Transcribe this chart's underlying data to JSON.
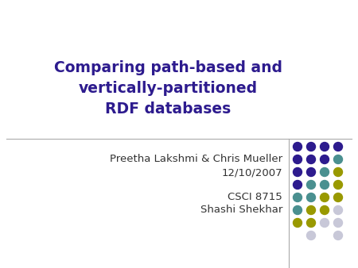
{
  "title_line1": "Comparing path-based and",
  "title_line2": "vertically-partitioned",
  "title_line3": "RDF databases",
  "title_color": "#2d1b8e",
  "line1": "Preetha Lakshmi & Chris Mueller",
  "line2": "12/10/2007",
  "line3": "CSCI 8715",
  "line4": "Shashi Shekhar",
  "text_color": "#333333",
  "bg_color": "#ffffff",
  "divider_color": "#aaaaaa",
  "dot_colors": {
    "purple": "#2d1b8e",
    "teal": "#4a9090",
    "yellow": "#999900",
    "light": "#c8c8d8"
  },
  "dot_grid": [
    [
      "purple",
      "purple",
      "purple",
      "purple"
    ],
    [
      "purple",
      "purple",
      "purple",
      "teal"
    ],
    [
      "purple",
      "purple",
      "teal",
      "yellow"
    ],
    [
      "purple",
      "teal",
      "teal",
      "yellow"
    ],
    [
      "teal",
      "teal",
      "yellow",
      "yellow"
    ],
    [
      "teal",
      "yellow",
      "yellow",
      "light"
    ],
    [
      "yellow",
      "yellow",
      "light",
      "light"
    ],
    [
      "",
      "light",
      "",
      "light"
    ]
  ],
  "title_fontsize": 13.5,
  "body_fontsize": 9.5,
  "figw": 4.5,
  "figh": 3.38,
  "dpi": 100
}
